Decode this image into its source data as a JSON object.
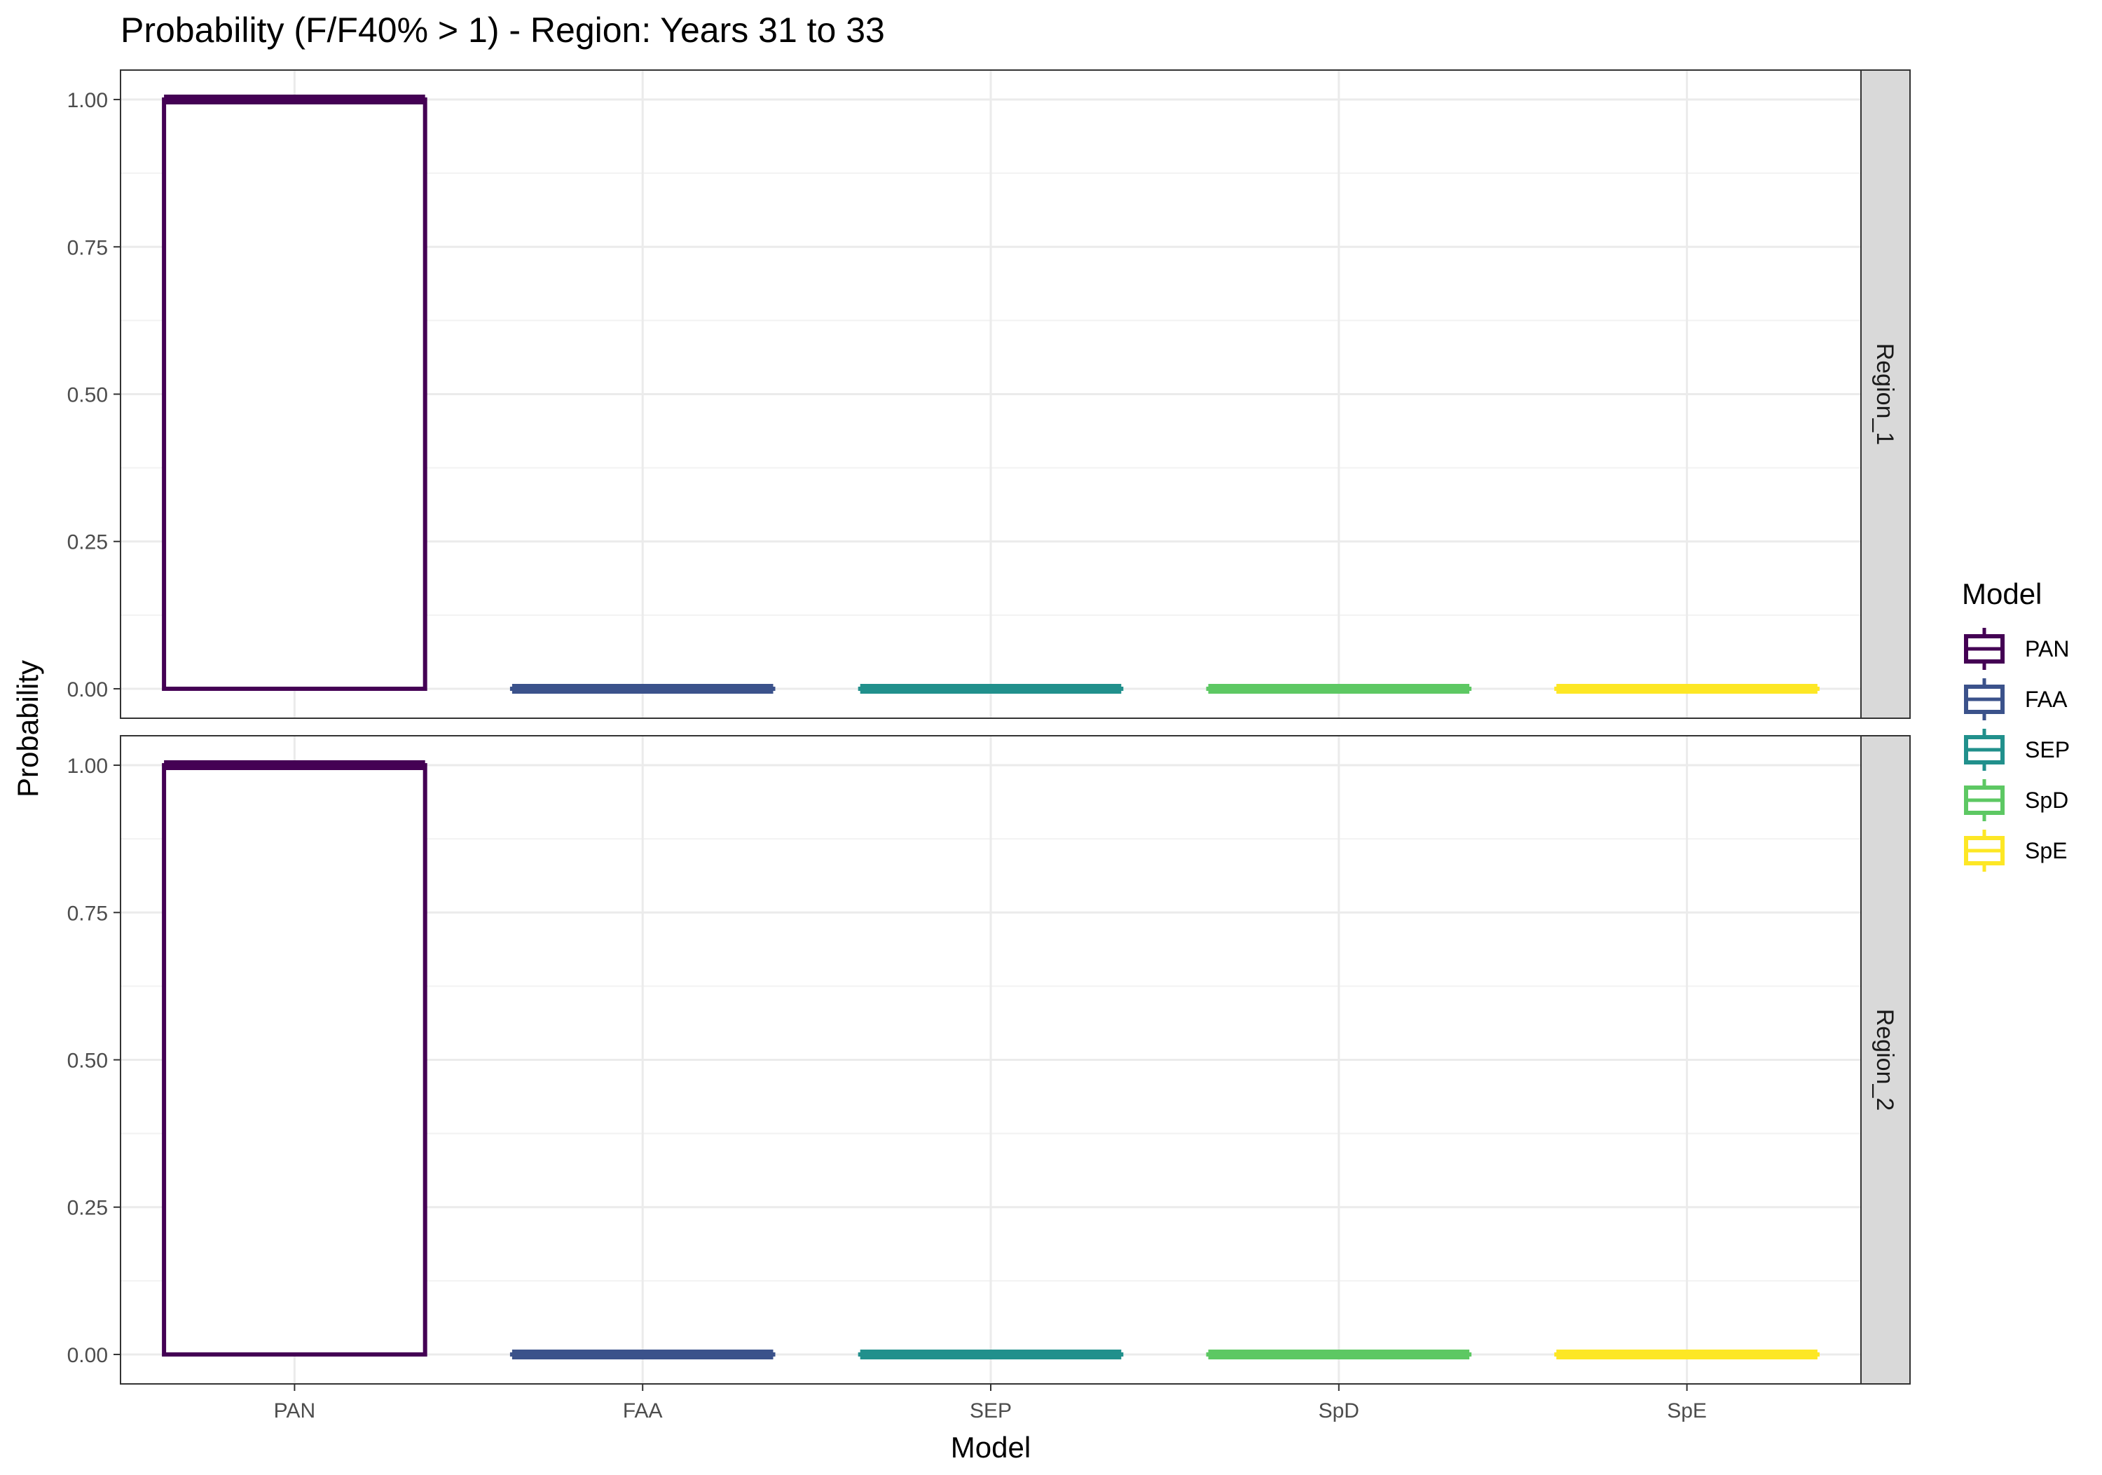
{
  "chart_data": {
    "type": "boxplot",
    "title": "Probability (F/F40% > 1) - Region: Years 31 to 33",
    "xlabel": "Model",
    "ylabel": "Probability",
    "categories": [
      "PAN",
      "FAA",
      "SEP",
      "SpD",
      "SpE"
    ],
    "ylim": [
      0,
      1
    ],
    "yticks": [
      "0.00",
      "0.25",
      "0.50",
      "0.75",
      "1.00"
    ],
    "grid": true,
    "legend": {
      "title": "Model",
      "position": "right",
      "entries": [
        "PAN",
        "FAA",
        "SEP",
        "SpD",
        "SpE"
      ]
    },
    "colors": {
      "PAN": "#440154",
      "FAA": "#3B528B",
      "SEP": "#21908C",
      "SpD": "#5DC863",
      "SpE": "#FDE725"
    },
    "panels": [
      {
        "label": "Region_1",
        "boxes": [
          {
            "model": "PAN",
            "min": 0,
            "q1": 0,
            "median": 1,
            "q3": 1,
            "max": 1
          },
          {
            "model": "FAA",
            "min": 0,
            "q1": 0,
            "median": 0,
            "q3": 0,
            "max": 0
          },
          {
            "model": "SEP",
            "min": 0,
            "q1": 0,
            "median": 0,
            "q3": 0,
            "max": 0
          },
          {
            "model": "SpD",
            "min": 0,
            "q1": 0,
            "median": 0,
            "q3": 0,
            "max": 0
          },
          {
            "model": "SpE",
            "min": 0,
            "q1": 0,
            "median": 0,
            "q3": 0,
            "max": 0
          }
        ]
      },
      {
        "label": "Region_2",
        "boxes": [
          {
            "model": "PAN",
            "min": 0,
            "q1": 0,
            "median": 1,
            "q3": 1,
            "max": 1
          },
          {
            "model": "FAA",
            "min": 0,
            "q1": 0,
            "median": 0,
            "q3": 0,
            "max": 0
          },
          {
            "model": "SEP",
            "min": 0,
            "q1": 0,
            "median": 0,
            "q3": 0,
            "max": 0
          },
          {
            "model": "SpD",
            "min": 0,
            "q1": 0,
            "median": 0,
            "q3": 0,
            "max": 0
          },
          {
            "model": "SpE",
            "min": 0,
            "q1": 0,
            "median": 0,
            "q3": 0,
            "max": 0
          }
        ]
      }
    ]
  }
}
